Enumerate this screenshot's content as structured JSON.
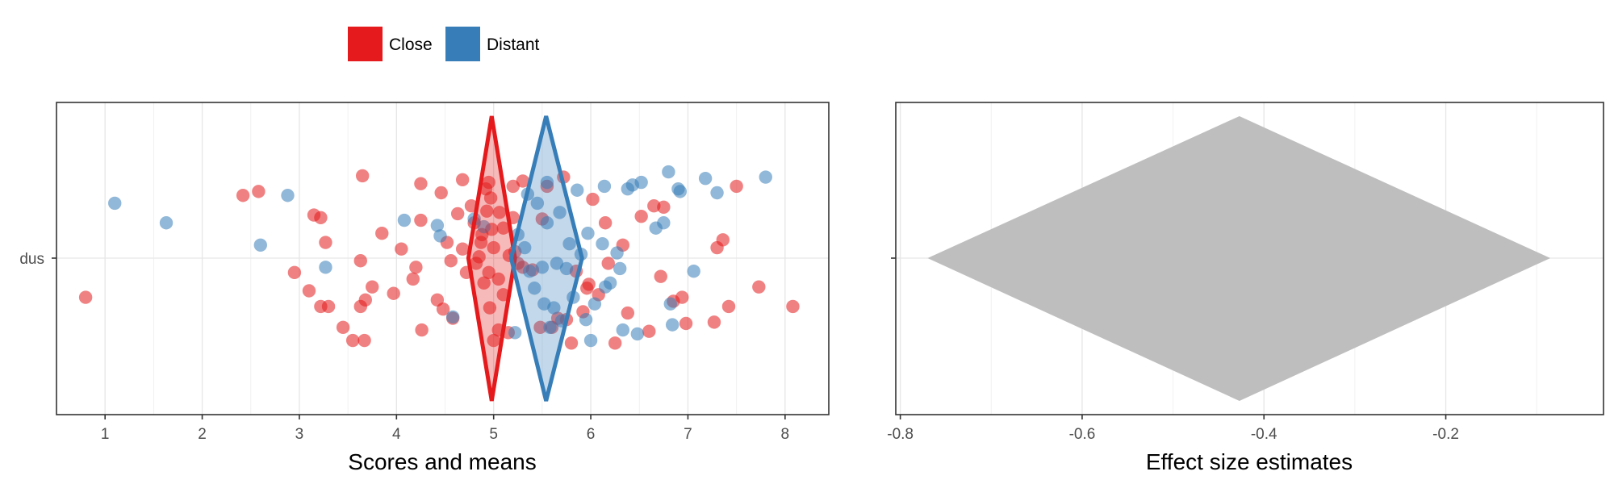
{
  "legend": {
    "position": "top",
    "items": [
      {
        "label": "Close",
        "color": "#E41A1C"
      },
      {
        "label": "Distant",
        "color": "#377EB8"
      }
    ]
  },
  "chart_data": [
    {
      "type": "scatter",
      "xlabel": "Scores and means",
      "ylabel": "",
      "y_category": "dus",
      "xlim": [
        0.5,
        8.45
      ],
      "xticks": [
        1,
        2,
        3,
        4,
        5,
        6,
        7,
        8
      ],
      "grid": true,
      "jitter": "vertical",
      "series": [
        {
          "name": "Close",
          "color": "#E41A1C",
          "mean": 4.98,
          "ci": [
            4.74,
            5.22
          ],
          "points": [
            [
              0.8,
              -0.3
            ],
            [
              2.42,
              0.48
            ],
            [
              2.58,
              0.51
            ],
            [
              2.95,
              -0.11
            ],
            [
              3.1,
              -0.25
            ],
            [
              3.15,
              0.33
            ],
            [
              3.22,
              0.31
            ],
            [
              3.22,
              -0.37
            ],
            [
              3.27,
              0.12
            ],
            [
              3.3,
              -0.37
            ],
            [
              3.45,
              -0.53
            ],
            [
              3.55,
              -0.63
            ],
            [
              3.63,
              -0.37
            ],
            [
              3.63,
              -0.02
            ],
            [
              3.65,
              0.63
            ],
            [
              3.67,
              -0.63
            ],
            [
              3.68,
              -0.32
            ],
            [
              3.75,
              -0.22
            ],
            [
              3.85,
              0.19
            ],
            [
              3.97,
              -0.27
            ],
            [
              4.05,
              0.07
            ],
            [
              4.17,
              -0.16
            ],
            [
              4.2,
              -0.07
            ],
            [
              4.25,
              0.29
            ],
            [
              4.25,
              0.57
            ],
            [
              4.26,
              -0.55
            ],
            [
              4.42,
              -0.32
            ],
            [
              4.46,
              0.5
            ],
            [
              4.48,
              -0.39
            ],
            [
              4.52,
              0.12
            ],
            [
              4.56,
              -0.02
            ],
            [
              4.58,
              -0.46
            ],
            [
              4.63,
              0.34
            ],
            [
              4.68,
              0.07
            ],
            [
              4.68,
              0.6
            ],
            [
              4.72,
              -0.11
            ],
            [
              4.77,
              0.4
            ],
            [
              4.8,
              0.27
            ],
            [
              4.82,
              -0.04
            ],
            [
              4.85,
              0.01
            ],
            [
              4.87,
              0.12
            ],
            [
              4.88,
              0.18
            ],
            [
              4.9,
              -0.19
            ],
            [
              4.92,
              0.53
            ],
            [
              4.93,
              0.36
            ],
            [
              4.95,
              -0.11
            ],
            [
              4.97,
              0.46
            ],
            [
              5.0,
              -0.63
            ],
            [
              5.0,
              0.08
            ],
            [
              5.05,
              -0.16
            ],
            [
              5.05,
              -0.55
            ],
            [
              5.1,
              0.23
            ],
            [
              5.15,
              -0.57
            ],
            [
              5.2,
              0.55
            ],
            [
              5.2,
              0.31
            ],
            [
              5.25,
              -0.04
            ],
            [
              5.3,
              0.59
            ],
            [
              5.3,
              -0.07
            ],
            [
              5.4,
              -0.09
            ],
            [
              5.48,
              -0.53
            ],
            [
              5.5,
              0.3
            ],
            [
              5.55,
              0.55
            ],
            [
              5.6,
              -0.53
            ],
            [
              5.66,
              -0.46
            ],
            [
              5.72,
              0.62
            ],
            [
              5.75,
              -0.47
            ],
            [
              5.8,
              -0.65
            ],
            [
              5.85,
              -0.1
            ],
            [
              5.92,
              -0.41
            ],
            [
              5.96,
              -0.23
            ],
            [
              5.98,
              -0.2
            ],
            [
              6.02,
              0.45
            ],
            [
              6.08,
              -0.28
            ],
            [
              6.15,
              0.27
            ],
            [
              6.18,
              -0.04
            ],
            [
              6.25,
              -0.65
            ],
            [
              6.33,
              0.1
            ],
            [
              6.38,
              -0.42
            ],
            [
              6.52,
              0.32
            ],
            [
              6.6,
              -0.56
            ],
            [
              6.65,
              0.4
            ],
            [
              6.72,
              -0.14
            ],
            [
              6.75,
              0.39
            ],
            [
              6.85,
              -0.33
            ],
            [
              6.94,
              -0.3
            ],
            [
              6.98,
              -0.5
            ],
            [
              7.27,
              -0.49
            ],
            [
              7.3,
              0.08
            ],
            [
              7.36,
              0.14
            ],
            [
              7.42,
              -0.37
            ],
            [
              7.5,
              0.55
            ],
            [
              7.73,
              -0.22
            ],
            [
              8.08,
              -0.37
            ],
            [
              5.22,
              0.05
            ],
            [
              4.98,
              0.22
            ],
            [
              4.96,
              -0.38
            ],
            [
              5.06,
              0.35
            ],
            [
              5.1,
              -0.28
            ],
            [
              4.95,
              0.58
            ],
            [
              5.16,
              0.02
            ]
          ]
        },
        {
          "name": "Distant",
          "color": "#377EB8",
          "mean": 5.54,
          "ci": [
            5.18,
            5.91
          ],
          "points": [
            [
              1.1,
              0.42
            ],
            [
              1.63,
              0.27
            ],
            [
              2.6,
              0.1
            ],
            [
              2.88,
              0.48
            ],
            [
              3.27,
              -0.07
            ],
            [
              4.08,
              0.29
            ],
            [
              4.42,
              0.25
            ],
            [
              4.45,
              0.17
            ],
            [
              4.58,
              -0.45
            ],
            [
              4.8,
              0.3
            ],
            [
              4.9,
              0.24
            ],
            [
              5.22,
              -0.57
            ],
            [
              5.25,
              0.18
            ],
            [
              5.35,
              0.49
            ],
            [
              5.37,
              -0.1
            ],
            [
              5.42,
              -0.23
            ],
            [
              5.5,
              -0.07
            ],
            [
              5.52,
              -0.35
            ],
            [
              5.55,
              0.27
            ],
            [
              5.55,
              0.58
            ],
            [
              5.62,
              -0.38
            ],
            [
              5.65,
              -0.04
            ],
            [
              5.7,
              -0.48
            ],
            [
              5.75,
              -0.08
            ],
            [
              5.78,
              0.11
            ],
            [
              5.82,
              -0.3
            ],
            [
              5.9,
              0.03
            ],
            [
              5.95,
              -0.47
            ],
            [
              5.97,
              0.19
            ],
            [
              6.0,
              -0.63
            ],
            [
              6.12,
              0.11
            ],
            [
              6.14,
              0.55
            ],
            [
              6.15,
              -0.22
            ],
            [
              6.2,
              -0.19
            ],
            [
              6.27,
              0.04
            ],
            [
              6.3,
              -0.08
            ],
            [
              6.38,
              0.53
            ],
            [
              6.43,
              0.56
            ],
            [
              6.52,
              0.58
            ],
            [
              6.67,
              0.23
            ],
            [
              6.75,
              0.27
            ],
            [
              6.82,
              -0.35
            ],
            [
              6.84,
              -0.51
            ],
            [
              6.9,
              0.53
            ],
            [
              6.92,
              0.51
            ],
            [
              7.06,
              -0.1
            ],
            [
              7.18,
              0.61
            ],
            [
              7.3,
              0.5
            ],
            [
              7.8,
              0.62
            ],
            [
              6.8,
              0.66
            ],
            [
              6.33,
              -0.55
            ],
            [
              5.32,
              0.08
            ],
            [
              5.86,
              0.52
            ],
            [
              5.68,
              0.35
            ],
            [
              5.45,
              0.42
            ],
            [
              6.04,
              -0.35
            ],
            [
              5.58,
              -0.53
            ],
            [
              6.48,
              -0.58
            ]
          ]
        }
      ]
    },
    {
      "type": "area",
      "xlabel": "Effect size estimates",
      "ylabel": "",
      "y_category": "dus",
      "xlim": [
        -0.805,
        -0.0265
      ],
      "xticks": [
        -0.8,
        -0.6,
        -0.4,
        -0.2
      ],
      "tick_labels": [
        "-0.8",
        "-0.6",
        "-0.4",
        "-0.2"
      ],
      "grid": true,
      "series": [
        {
          "name": "",
          "color": "#BEBEBE",
          "estimate": -0.427,
          "ci": [
            -0.77,
            -0.085
          ]
        }
      ]
    }
  ]
}
